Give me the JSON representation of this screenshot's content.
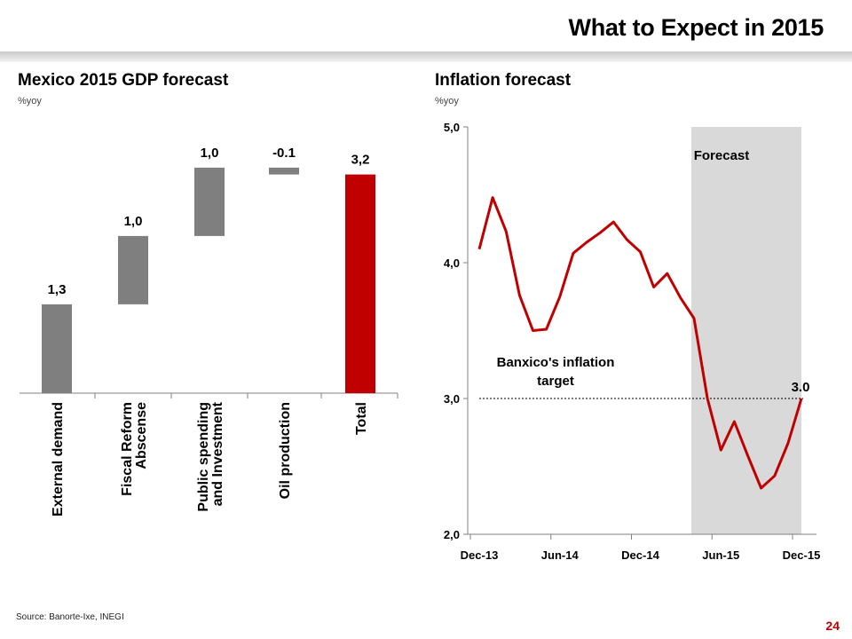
{
  "slide": {
    "title": "What to Expect in 2015",
    "source": "Source: Banorte-Ixe, INEGI",
    "page_number": "24"
  },
  "colors": {
    "gray_bar": "#7f7f7f",
    "red_accent": "#c00000",
    "line": "#c00000",
    "forecast_shade": "#d9d9d9"
  },
  "chart_data": [
    {
      "type": "bar",
      "subtype": "waterfall",
      "title": "Mexico 2015 GDP forecast",
      "subtitle": "%yoy",
      "categories": [
        [
          "External demand"
        ],
        [
          "Fiscal Reform",
          "Abscense"
        ],
        [
          "Public spending",
          "and Investment"
        ],
        [
          "Oil production"
        ],
        [
          "Total"
        ]
      ],
      "values": [
        1.3,
        1.0,
        1.0,
        -0.1,
        3.2
      ],
      "data_labels": [
        "1,3",
        "1,0",
        "1,0",
        "-0.1",
        "3,2"
      ],
      "base": [
        0,
        1.3,
        2.3,
        3.3,
        0
      ],
      "ylim": [
        0,
        4.1
      ],
      "bar_colors": [
        "#7f7f7f",
        "#7f7f7f",
        "#7f7f7f",
        "#7f7f7f",
        "#c00000"
      ]
    },
    {
      "type": "line",
      "title": "Inflation forecast",
      "subtitle": "%yoy",
      "x_tick_labels": [
        "Dec-13",
        "Jun-14",
        "Dec-14",
        "Jun-15",
        "Dec-15"
      ],
      "y_tick_labels": [
        "2,0",
        "3,0",
        "4,0",
        "5,0"
      ],
      "y_ticks": [
        2.0,
        3.0,
        4.0,
        5.0
      ],
      "ylim": [
        2.0,
        5.0
      ],
      "months": [
        "Dec-13",
        "Jan-14",
        "Feb-14",
        "Mar-14",
        "Apr-14",
        "May-14",
        "Jun-14",
        "Jul-14",
        "Aug-14",
        "Sep-14",
        "Oct-14",
        "Nov-14",
        "Dec-14",
        "Jan-15",
        "Feb-15",
        "Mar-15",
        "Apr-15",
        "May-15",
        "Jun-15",
        "Jul-15",
        "Aug-15",
        "Sep-15",
        "Oct-15",
        "Nov-15",
        "Dec-15"
      ],
      "values": [
        4.1,
        4.48,
        4.23,
        3.76,
        3.5,
        3.51,
        3.75,
        4.07,
        4.15,
        4.22,
        4.3,
        4.17,
        4.08,
        3.82,
        3.92,
        3.74,
        3.59,
        3.0,
        2.62,
        2.83,
        2.58,
        2.34,
        2.43,
        2.67,
        3.0
      ],
      "forecast_start": "Apr-15",
      "forecast_label": "Forecast",
      "target": 3.0,
      "target_label": [
        "Banxico's inflation",
        "target"
      ],
      "end_label": "3.0"
    }
  ]
}
